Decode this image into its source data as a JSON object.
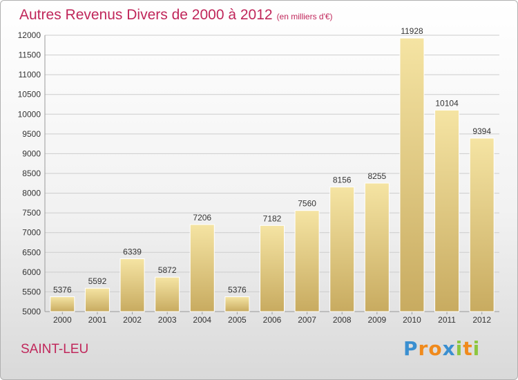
{
  "title": "Autres Revenus Divers de 2000 à 2012",
  "subtitle": "(en milliers d'€)",
  "city": "SAINT-LEU",
  "logo": {
    "text": "Proxiti",
    "letters": [
      {
        "ch": "P",
        "color": "#3a8fd0"
      },
      {
        "ch": "r",
        "color": "#f08a1c"
      },
      {
        "ch": "o",
        "color": "#f08a1c"
      },
      {
        "ch": "x",
        "color": "#3a8fd0"
      },
      {
        "ch": "i",
        "color": "#8cc63f"
      },
      {
        "ch": "t",
        "color": "#f08a1c"
      },
      {
        "ch": "i",
        "color": "#8cc63f"
      }
    ]
  },
  "colors": {
    "title": "#c0265a",
    "bar_top": "#f5e4a3",
    "bar_bottom": "#c8ab60",
    "grid": "#cccccc",
    "axis_text": "#333333"
  },
  "chart_data": {
    "type": "bar",
    "categories": [
      "2000",
      "2001",
      "2002",
      "2003",
      "2004",
      "2005",
      "2006",
      "2007",
      "2008",
      "2009",
      "2010",
      "2011",
      "2012"
    ],
    "values": [
      5376,
      5592,
      6339,
      5872,
      7206,
      5376,
      7182,
      7560,
      8156,
      8255,
      11928,
      10104,
      9394
    ],
    "ylim": [
      5000,
      12000
    ],
    "yticks": [
      5000,
      5500,
      6000,
      6500,
      7000,
      7500,
      8000,
      8500,
      9000,
      9500,
      10000,
      10500,
      11000,
      11500,
      12000
    ],
    "grid": true,
    "data_labels": true
  }
}
